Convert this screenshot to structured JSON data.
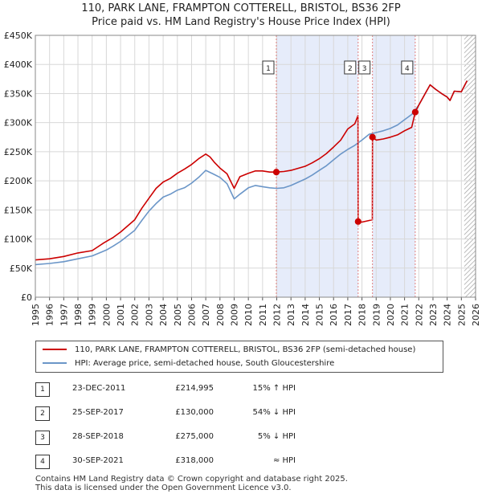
{
  "title": {
    "line1": "110, PARK LANE, FRAMPTON COTTERELL, BRISTOL, BS36 2FP",
    "line2": "Price paid vs. HM Land Registry's House Price Index (HPI)"
  },
  "chart_data": {
    "type": "line",
    "ylim": [
      0,
      450000
    ],
    "xlim": [
      1995,
      2026
    ],
    "y_ticks": [
      {
        "value": 0,
        "label": "£0"
      },
      {
        "value": 50000,
        "label": "£50K"
      },
      {
        "value": 100000,
        "label": "£100K"
      },
      {
        "value": 150000,
        "label": "£150K"
      },
      {
        "value": 200000,
        "label": "£200K"
      },
      {
        "value": 250000,
        "label": "£250K"
      },
      {
        "value": 300000,
        "label": "£300K"
      },
      {
        "value": 350000,
        "label": "£350K"
      },
      {
        "value": 400000,
        "label": "£400K"
      },
      {
        "value": 450000,
        "label": "£450K"
      }
    ],
    "x_ticks": [
      "1995",
      "1996",
      "1997",
      "1998",
      "1999",
      "2000",
      "2001",
      "2002",
      "2003",
      "2004",
      "2005",
      "2006",
      "2007",
      "2008",
      "2009",
      "2010",
      "2011",
      "2012",
      "2013",
      "2014",
      "2015",
      "2016",
      "2017",
      "2018",
      "2019",
      "2020",
      "2021",
      "2022",
      "2023",
      "2024",
      "2025",
      "2026"
    ],
    "shaded_regions": [
      [
        2011.97,
        2017.73
      ],
      [
        2018.74,
        2021.75
      ]
    ],
    "hatched_from": 2025.2,
    "colors": {
      "property": "#cc0000",
      "hpi": "#6b96c8",
      "shade": "#e6ecfa",
      "marker_line": "#e08080"
    },
    "series": [
      {
        "name": "110, PARK LANE, FRAMPTON COTTERELL, BRISTOL, BS36 2FP (semi-detached house)",
        "color": "#cc0000",
        "x": [
          1995.0,
          1996.0,
          1997.0,
          1998.0,
          1999.0,
          1999.8,
          2000.5,
          2001.0,
          2002.0,
          2002.5,
          2003.0,
          2003.5,
          2004.0,
          2004.5,
          2005.0,
          2005.5,
          2006.0,
          2006.5,
          2007.0,
          2007.3,
          2007.6,
          2008.0,
          2008.5,
          2009.0,
          2009.4,
          2010.0,
          2010.5,
          2011.0,
          2011.5,
          2011.97,
          2012.5,
          2013.0,
          2014.0,
          2014.5,
          2015.0,
          2015.5,
          2016.0,
          2016.5,
          2017.0,
          2017.5,
          2017.72,
          2017.73,
          2018.0,
          2018.73,
          2018.74,
          2019.0,
          2019.5,
          2020.0,
          2020.5,
          2021.0,
          2021.5,
          2021.75,
          2022.0,
          2022.5,
          2022.8,
          2023.2,
          2023.6,
          2024.0,
          2024.2,
          2024.5,
          2025.0,
          2025.4
        ],
        "y": [
          64000,
          66000,
          70000,
          76000,
          80000,
          93000,
          103000,
          112000,
          133000,
          153000,
          170000,
          187000,
          198000,
          204000,
          213000,
          220000,
          228000,
          238000,
          246000,
          241000,
          232000,
          222000,
          212000,
          187000,
          207000,
          213000,
          217000,
          217000,
          215000,
          214995,
          216000,
          218000,
          225000,
          231000,
          238000,
          247000,
          258000,
          270000,
          289000,
          298000,
          312000,
          130000,
          129000,
          133000,
          275000,
          270000,
          272000,
          275000,
          279000,
          286000,
          292000,
          318000,
          330000,
          352000,
          365000,
          357000,
          350000,
          344000,
          338000,
          354000,
          353000,
          372000
        ]
      },
      {
        "name": "HPI: Average price, semi-detached house, South Gloucestershire",
        "color": "#6b96c8",
        "x": [
          1995.0,
          1996.0,
          1997.0,
          1998.0,
          1999.0,
          2000.0,
          2000.5,
          2001.0,
          2002.0,
          2002.5,
          2003.0,
          2003.5,
          2004.0,
          2004.5,
          2005.0,
          2005.5,
          2006.0,
          2006.5,
          2007.0,
          2007.5,
          2008.0,
          2008.5,
          2009.0,
          2009.4,
          2010.0,
          2010.5,
          2011.0,
          2011.5,
          2012.0,
          2012.5,
          2013.0,
          2014.0,
          2014.5,
          2015.0,
          2015.5,
          2016.0,
          2016.5,
          2017.0,
          2017.5,
          2018.0,
          2018.5,
          2019.0,
          2019.5,
          2020.0,
          2020.5,
          2021.0,
          2021.5,
          2022.0,
          2022.5,
          2022.8,
          2023.2,
          2023.6,
          2024.0,
          2024.2,
          2024.5,
          2025.0,
          2025.4
        ],
        "y": [
          56000,
          58000,
          61000,
          66000,
          71000,
          81000,
          88000,
          96000,
          115000,
          132000,
          148000,
          161000,
          172000,
          177000,
          184000,
          188000,
          196000,
          206000,
          218000,
          212000,
          206000,
          195000,
          169000,
          177000,
          188000,
          192000,
          190000,
          188000,
          187000,
          188000,
          192000,
          203000,
          210000,
          218000,
          226000,
          236000,
          246000,
          254000,
          261000,
          270000,
          280000,
          283000,
          286000,
          290000,
          296000,
          305000,
          314000,
          330000,
          352000,
          365000,
          357000,
          350000,
          344000,
          338000,
          354000,
          353000,
          372000
        ]
      }
    ],
    "sales": [
      {
        "n": "1",
        "year": 2011.97,
        "price": 214995
      },
      {
        "n": "2",
        "year": 2017.73,
        "price": 130000
      },
      {
        "n": "3",
        "year": 2018.74,
        "price": 275000
      },
      {
        "n": "4",
        "year": 2021.75,
        "price": 318000
      }
    ]
  },
  "legend": {
    "property_label": "110, PARK LANE, FRAMPTON COTTERELL, BRISTOL, BS36 2FP (semi-detached house)",
    "hpi_label": "HPI: Average price, semi-detached house, South Gloucestershire"
  },
  "sales_table": [
    {
      "n": "1",
      "date": "23-DEC-2011",
      "price": "£214,995",
      "hpi": "15% ↑ HPI"
    },
    {
      "n": "2",
      "date": "25-SEP-2017",
      "price": "£130,000",
      "hpi": "54% ↓ HPI"
    },
    {
      "n": "3",
      "date": "28-SEP-2018",
      "price": "£275,000",
      "hpi": "5% ↓ HPI"
    },
    {
      "n": "4",
      "date": "30-SEP-2021",
      "price": "£318,000",
      "hpi": "≈ HPI"
    }
  ],
  "footer": {
    "line1": "Contains HM Land Registry data © Crown copyright and database right 2025.",
    "line2": "This data is licensed under the Open Government Licence v3.0."
  }
}
